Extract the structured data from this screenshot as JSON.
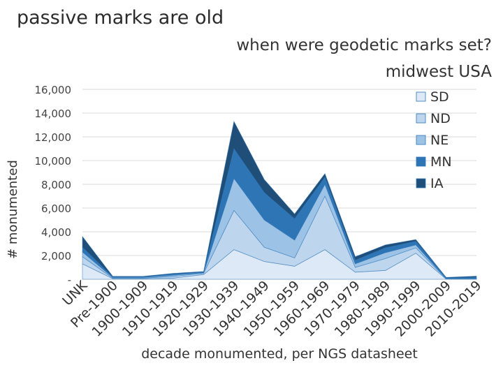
{
  "slide": {
    "title": "passive marks are old"
  },
  "chart_data": {
    "type": "area",
    "stacked": true,
    "title": [
      "when were geodetic marks set?",
      "midwest USA"
    ],
    "xlabel": "decade monumented, per NGS datasheet",
    "ylabel": "# monumented",
    "ylim": [
      0,
      16000
    ],
    "yticks": [
      0,
      2000,
      4000,
      6000,
      8000,
      10000,
      12000,
      14000,
      16000
    ],
    "ytick_labels": [
      "-",
      "2,000",
      "4,000",
      "6,000",
      "8,000",
      "10,000",
      "12,000",
      "14,000",
      "16,000"
    ],
    "grid": true,
    "legend_position": "right",
    "categories": [
      "UNK",
      "Pre-1900",
      "1900-1909",
      "1910-1919",
      "1920-1929",
      "1930-1939",
      "1940-1949",
      "1950-1959",
      "1960-1969",
      "1970-1979",
      "1980-1989",
      "1990-1999",
      "2000-2009",
      "2010-2019"
    ],
    "series": [
      {
        "name": "SD",
        "color": "#dde9f6",
        "values": [
          1300,
          50,
          50,
          100,
          400,
          2500,
          1500,
          1100,
          2500,
          600,
          750,
          2200,
          20,
          20
        ]
      },
      {
        "name": "ND",
        "color": "#bdd6ee",
        "values": [
          600,
          50,
          50,
          150,
          100,
          3300,
          1200,
          700,
          4500,
          400,
          1000,
          450,
          20,
          20
        ]
      },
      {
        "name": "NE",
        "color": "#9cc3e6",
        "values": [
          400,
          50,
          50,
          100,
          50,
          2700,
          2300,
          1500,
          1000,
          300,
          500,
          250,
          20,
          20
        ]
      },
      {
        "name": "MN",
        "color": "#2e75b6",
        "values": [
          400,
          50,
          50,
          100,
          50,
          2500,
          2300,
          1800,
          600,
          300,
          400,
          300,
          50,
          100
        ]
      },
      {
        "name": "IA",
        "color": "#1f4e79",
        "values": [
          900,
          50,
          50,
          50,
          50,
          2300,
          1100,
          400,
          300,
          300,
          250,
          150,
          50,
          100
        ]
      }
    ]
  }
}
